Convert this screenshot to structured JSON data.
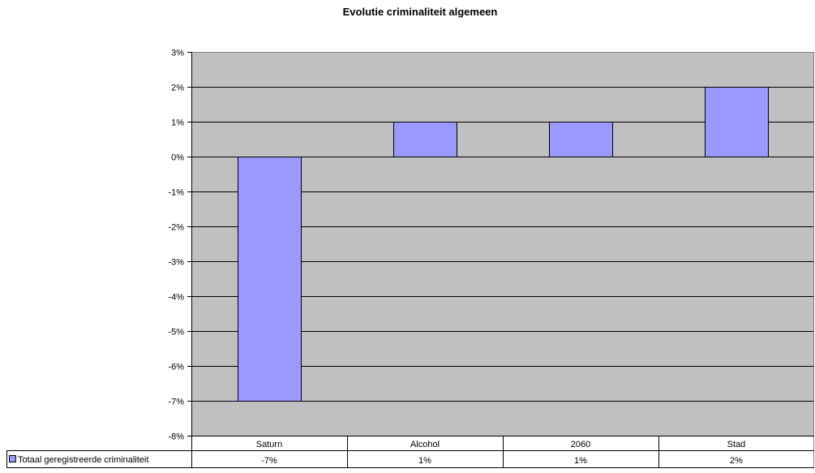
{
  "chart_data": {
    "type": "bar",
    "title": "Evolutie criminaliteit algemeen",
    "categories": [
      "Saturn",
      "Alcohol",
      "2060",
      "Stad"
    ],
    "series": [
      {
        "name": "Totaal geregistreerde criminaliteit",
        "values": [
          -7,
          1,
          1,
          2
        ],
        "value_labels": [
          "-7%",
          "1%",
          "1%",
          "2%"
        ],
        "color": "#9999FF"
      }
    ],
    "ylim": [
      -8,
      3
    ],
    "yticks": [
      3,
      2,
      1,
      0,
      -1,
      -2,
      -3,
      -4,
      -5,
      -6,
      -7,
      -8
    ],
    "ytick_labels": [
      "3%",
      "2%",
      "1%",
      "0%",
      "-1%",
      "-2%",
      "-3%",
      "-4%",
      "-5%",
      "-6%",
      "-7%",
      "-8%"
    ],
    "grid": true,
    "data_table": true,
    "plot_background": "#C0C0C0",
    "bar_border": "#000000"
  }
}
